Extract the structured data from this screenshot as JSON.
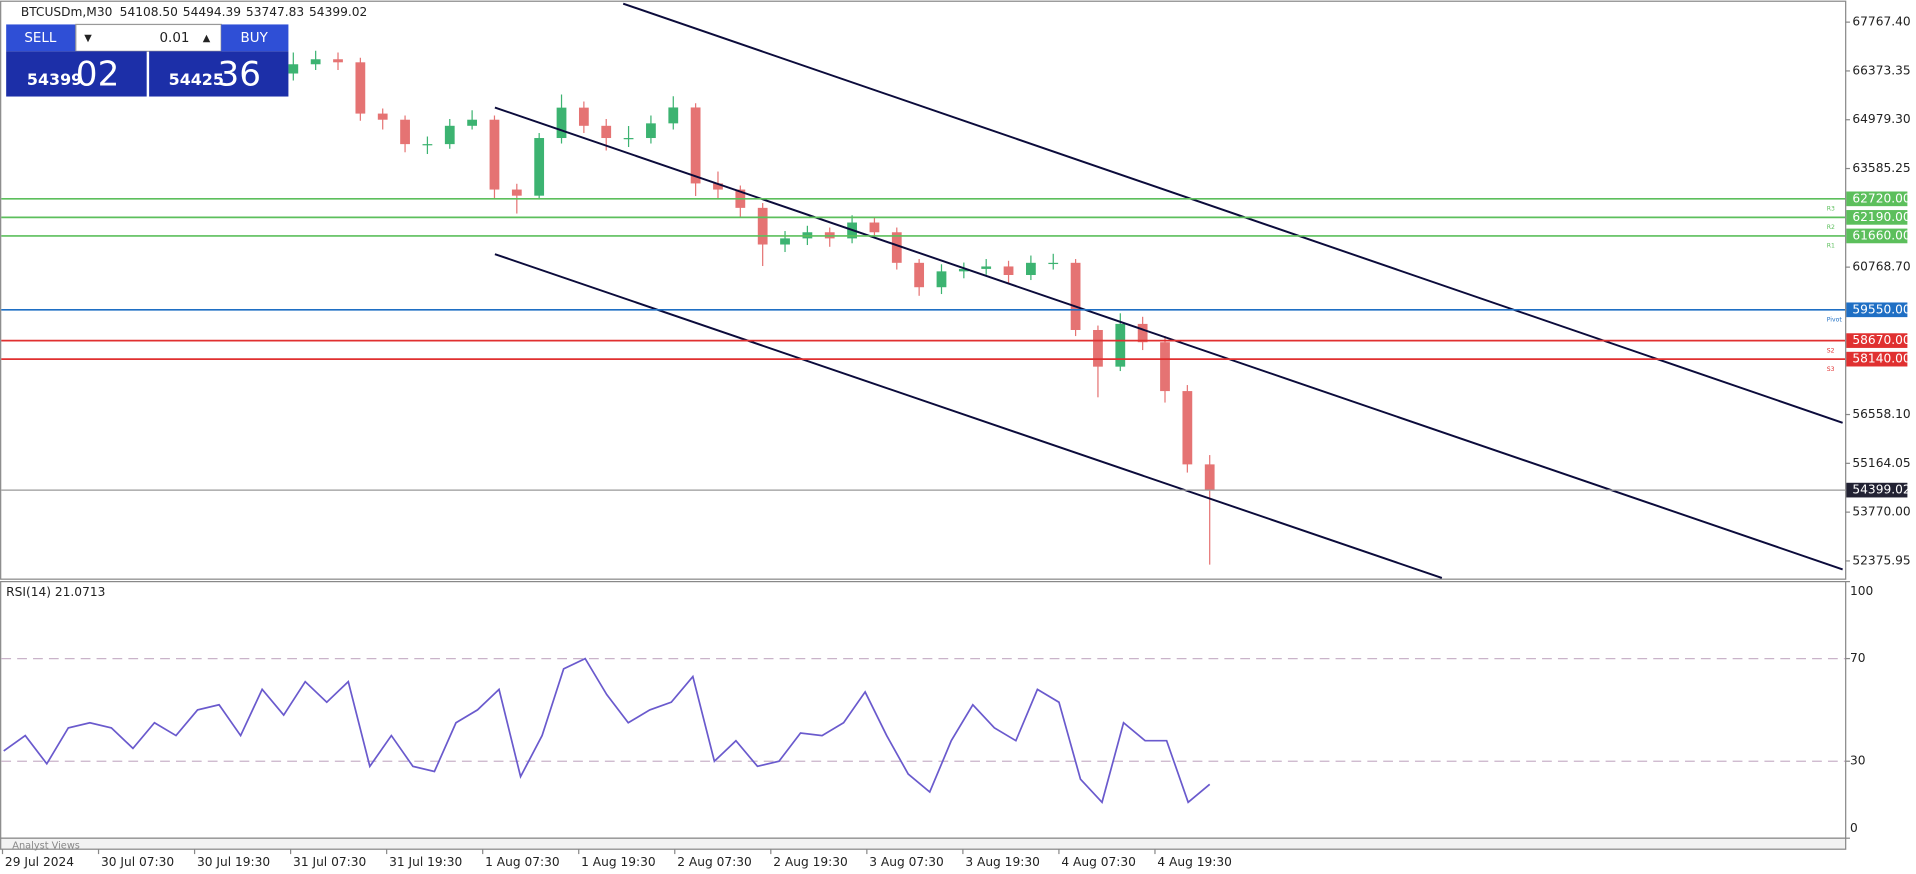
{
  "chart_data": [
    {
      "type": "candlestick",
      "symbol": "BTCUSDm,M30",
      "ohlc_labels": [
        "54108.50",
        "54494.39",
        "53747.83",
        "54399.02"
      ],
      "up_color": "#3cb371",
      "down_color": "#e57373",
      "open": [
        66300,
        66564,
        66707,
        66620,
        65155,
        64980,
        64283,
        64283,
        64806,
        64980,
        62985,
        62810,
        64457,
        65325,
        64806,
        64457,
        64457,
        64876,
        65330,
        63160,
        62985,
        62462,
        61415,
        61590,
        61765,
        61590,
        62043,
        61765,
        60892,
        60195,
        60648,
        60718,
        60788,
        60544,
        60892,
        60892,
        58973,
        57926,
        59147,
        58624,
        57228,
        55134
      ],
      "high": [
        66900,
        66950,
        66900,
        66750,
        65300,
        65100,
        64500,
        65000,
        65250,
        65100,
        63150,
        64600,
        65700,
        65500,
        65000,
        64800,
        65100,
        65650,
        65450,
        63500,
        63100,
        62600,
        61800,
        61950,
        61900,
        62250,
        62200,
        61900,
        61000,
        60850,
        60900,
        61000,
        60950,
        61100,
        61150,
        61000,
        59100,
        59450,
        59350,
        58800,
        57400,
        55400
      ],
      "low": [
        66100,
        66400,
        66400,
        64950,
        64700,
        64050,
        64000,
        64150,
        64700,
        62700,
        62300,
        62700,
        64300,
        64600,
        64100,
        64200,
        64300,
        64700,
        62800,
        62700,
        62200,
        60800,
        61200,
        61400,
        61350,
        61450,
        61600,
        60700,
        59950,
        60000,
        60450,
        60550,
        60300,
        60400,
        60700,
        58800,
        57050,
        57800,
        58400,
        56900,
        54900,
        52270
      ],
      "close": [
        66564,
        66707,
        66620,
        65155,
        64980,
        64283,
        64283,
        64806,
        64980,
        62985,
        62810,
        64457,
        65325,
        64806,
        64457,
        64457,
        64876,
        65330,
        63160,
        62985,
        62462,
        61415,
        61590,
        61765,
        61590,
        62043,
        61765,
        60892,
        60195,
        60648,
        60718,
        60788,
        60544,
        60892,
        60892,
        58973,
        57926,
        59147,
        58624,
        57228,
        55134,
        54399
      ],
      "ylim": [
        51890,
        68330
      ],
      "yticks": [
        {
          "value": 67767.4,
          "label": "67767.40"
        },
        {
          "value": 66373.35,
          "label": "66373.35"
        },
        {
          "value": 64979.3,
          "label": "64979.30"
        },
        {
          "value": 63585.25,
          "label": "63585.25"
        },
        {
          "value": 60768.7,
          "label": "60768.70"
        },
        {
          "value": 56558.1,
          "label": "56558.10"
        },
        {
          "value": 55164.05,
          "label": "55164.05"
        },
        {
          "value": 53770,
          "label": "53770.00"
        },
        {
          "value": 52375.95,
          "label": "52375.95"
        }
      ],
      "levels": [
        {
          "name": "R3",
          "value": 62720,
          "value_label": "62720.00",
          "color": "#5cbf5c"
        },
        {
          "name": "R2",
          "value": 62190,
          "value_label": "62190.00",
          "color": "#5cbf5c"
        },
        {
          "name": "R1",
          "value": 61660,
          "value_label": "61660.00",
          "color": "#5cbf5c"
        },
        {
          "name": "Pivot",
          "value": 59550,
          "value_label": "59550.00",
          "color": "#1f6fc4"
        },
        {
          "name": "S2",
          "value": 58670,
          "value_label": "58670.00",
          "color": "#e03030"
        },
        {
          "name": "S3",
          "value": 58140,
          "value_label": "58140.00",
          "color": "#e03030"
        }
      ],
      "last_price": {
        "value": 54399.02,
        "label": "54399.02"
      },
      "xticks": [
        "29 Jul 2024",
        "30 Jul 07:30",
        "30 Jul 19:30",
        "31 Jul 07:30",
        "31 Jul 19:30",
        "1 Aug 07:30",
        "1 Aug 19:30",
        "2 Aug 07:30",
        "2 Aug 19:30",
        "3 Aug 07:30",
        "3 Aug 19:30",
        "4 Aug 07:30",
        "4 Aug 19:30"
      ]
    },
    {
      "type": "line",
      "title": "RSI(14) 21.0713",
      "color": "#6a5acd",
      "values": [
        34,
        40,
        29,
        43,
        45,
        43,
        35,
        45,
        40,
        50,
        52,
        40,
        58,
        48,
        61,
        53,
        61,
        28,
        40,
        28,
        26,
        45,
        50,
        58,
        24,
        40,
        66,
        70,
        56,
        45,
        50,
        53,
        63,
        30,
        38,
        28,
        30,
        41,
        40,
        45,
        57,
        40,
        25,
        18,
        38,
        52,
        43,
        38,
        58,
        53,
        23,
        14,
        45,
        38,
        38,
        14,
        21
      ],
      "ylim": [
        0,
        100
      ],
      "yticks": [
        0,
        30,
        70,
        100
      ],
      "dashed_levels": [
        30,
        70
      ]
    }
  ],
  "trade_panel": {
    "sell": "SELL",
    "buy": "BUY",
    "volume": "0.01",
    "sell_price_main": "54399",
    "sell_price_big": "02",
    "buy_price_main": "54425",
    "buy_price_big": "36"
  },
  "footer": "Analyst Views"
}
